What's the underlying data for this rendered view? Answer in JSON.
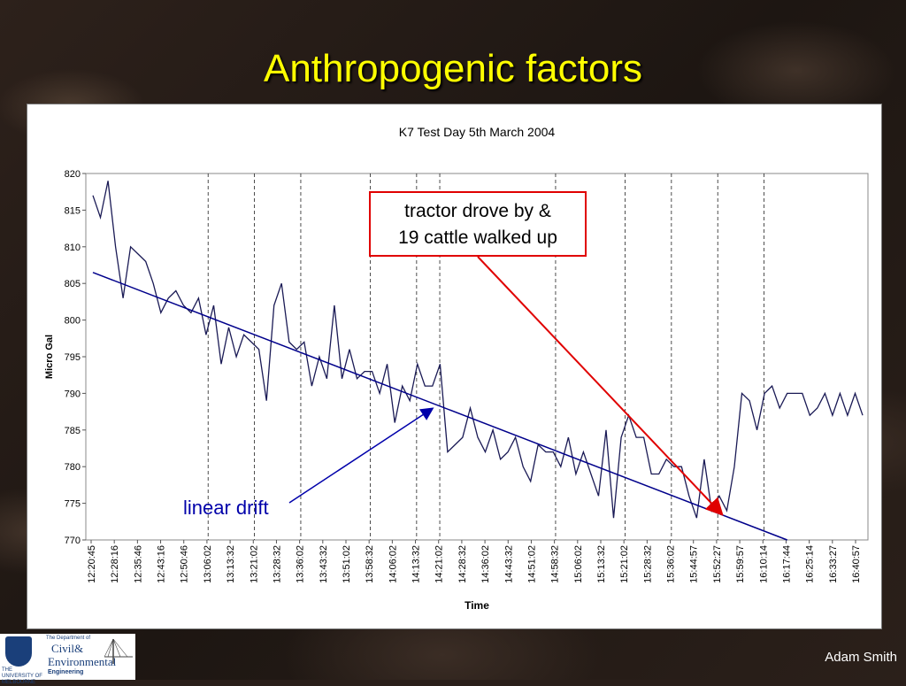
{
  "slide": {
    "title": "Anthropogenic factors",
    "author": "Adam Smith",
    "logo": {
      "university": "THE UNIVERSITY OF MELBOURNE",
      "department": "The Department of",
      "civil": "Civil&",
      "environmental": "Environmental",
      "engineering": "Engineering"
    }
  },
  "annotations": {
    "tractor_line1": "tractor drove by &",
    "tractor_line2": "19 cattle walked up",
    "linear_drift": "linear drift",
    "tractor_color": "#e00000",
    "drift_color": "#0000aa"
  },
  "chart_data": {
    "type": "line",
    "title": "K7 Test Day 5th March 2004",
    "xlabel": "Time",
    "ylabel": "Micro Gal",
    "ylim": [
      770,
      820
    ],
    "yticks": [
      770,
      775,
      780,
      785,
      790,
      795,
      800,
      805,
      810,
      815,
      820
    ],
    "xtick_labels": [
      "12:20:45",
      "12:28:16",
      "12:35:46",
      "12:43:16",
      "12:50:46",
      "13:06:02",
      "13:13:32",
      "13:21:02",
      "13:28:32",
      "13:36:02",
      "13:43:32",
      "13:51:02",
      "13:58:32",
      "14:06:02",
      "14:13:32",
      "14:21:02",
      "14:28:32",
      "14:36:02",
      "14:43:32",
      "14:51:02",
      "14:58:32",
      "15:06:02",
      "15:13:32",
      "15:21:02",
      "15:28:32",
      "15:36:02",
      "15:44:57",
      "15:52:27",
      "15:59:57",
      "16:10:14",
      "16:17:44",
      "16:25:14",
      "16:33:27",
      "16:40:57"
    ],
    "dashed_gridlines_at_index": [
      5,
      7,
      9,
      12,
      14,
      15,
      20,
      23,
      25,
      27,
      29
    ],
    "series": [
      {
        "color": "#1a1a55",
        "values": [
          817,
          814,
          819,
          810,
          803,
          810,
          809,
          808,
          805,
          801,
          803,
          804,
          802,
          801,
          803,
          798,
          802,
          794,
          799,
          795,
          798,
          797,
          796,
          789,
          802,
          805,
          797,
          796,
          797,
          791,
          795,
          792,
          802,
          792,
          796,
          792,
          793,
          793,
          790,
          794,
          786,
          791,
          789,
          794,
          791,
          791,
          794,
          782,
          783,
          784,
          788,
          784,
          782,
          785,
          781,
          782,
          784,
          780,
          778,
          783,
          782,
          782,
          780,
          784,
          779,
          782,
          779,
          776,
          785,
          773,
          784,
          787,
          784,
          784,
          779,
          779,
          781,
          780,
          780,
          776,
          773,
          781,
          774,
          776,
          774,
          780,
          790,
          789,
          785,
          790,
          791,
          788,
          790,
          790,
          790,
          787,
          788,
          790,
          787,
          790,
          787,
          790,
          787
        ]
      },
      {
        "color": "#00008b",
        "values": [
          806.5,
          770.0
        ],
        "x_index_range": [
          0,
          92
        ]
      }
    ],
    "legend": "none"
  }
}
